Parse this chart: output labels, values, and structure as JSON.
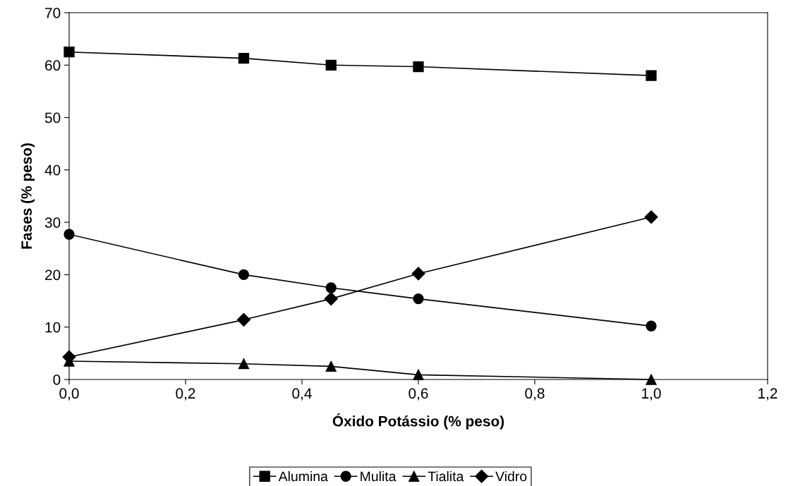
{
  "chart_data": {
    "type": "line",
    "xlabel": "Óxido Potássio (% peso)",
    "ylabel": "Fases (% peso)",
    "x": [
      0.0,
      0.3,
      0.45,
      0.6,
      1.0
    ],
    "series": [
      {
        "name": "Alumina",
        "color": "#000000",
        "marker": "square",
        "values": [
          62.5,
          61.3,
          60.0,
          59.7,
          58.0
        ]
      },
      {
        "name": "Mulita",
        "color": "#000000",
        "marker": "circle",
        "values": [
          27.7,
          20.0,
          17.5,
          15.4,
          10.2
        ]
      },
      {
        "name": "Tialita",
        "color": "#000000",
        "marker": "triangle",
        "values": [
          3.5,
          3.0,
          2.5,
          0.9,
          0.0
        ]
      },
      {
        "name": "Vidro",
        "color": "#000000",
        "marker": "diamond",
        "values": [
          4.3,
          11.4,
          15.4,
          20.2,
          31.0
        ]
      }
    ],
    "xlim": [
      0,
      1.2
    ],
    "xticks": [
      {
        "value": 0,
        "label": "0,0"
      },
      {
        "value": 0.2,
        "label": "0,2"
      },
      {
        "value": 0.4,
        "label": "0,4"
      },
      {
        "value": 0.6,
        "label": "0,6"
      },
      {
        "value": 0.8,
        "label": "0,8"
      },
      {
        "value": 1.0,
        "label": "1,0"
      },
      {
        "value": 1.2,
        "label": "1,2"
      }
    ],
    "ylim": [
      0,
      70
    ],
    "yticks": [
      0,
      10,
      20,
      30,
      40,
      50,
      60,
      70
    ],
    "grid": false,
    "legend": "bottom",
    "line_style": "solid"
  }
}
